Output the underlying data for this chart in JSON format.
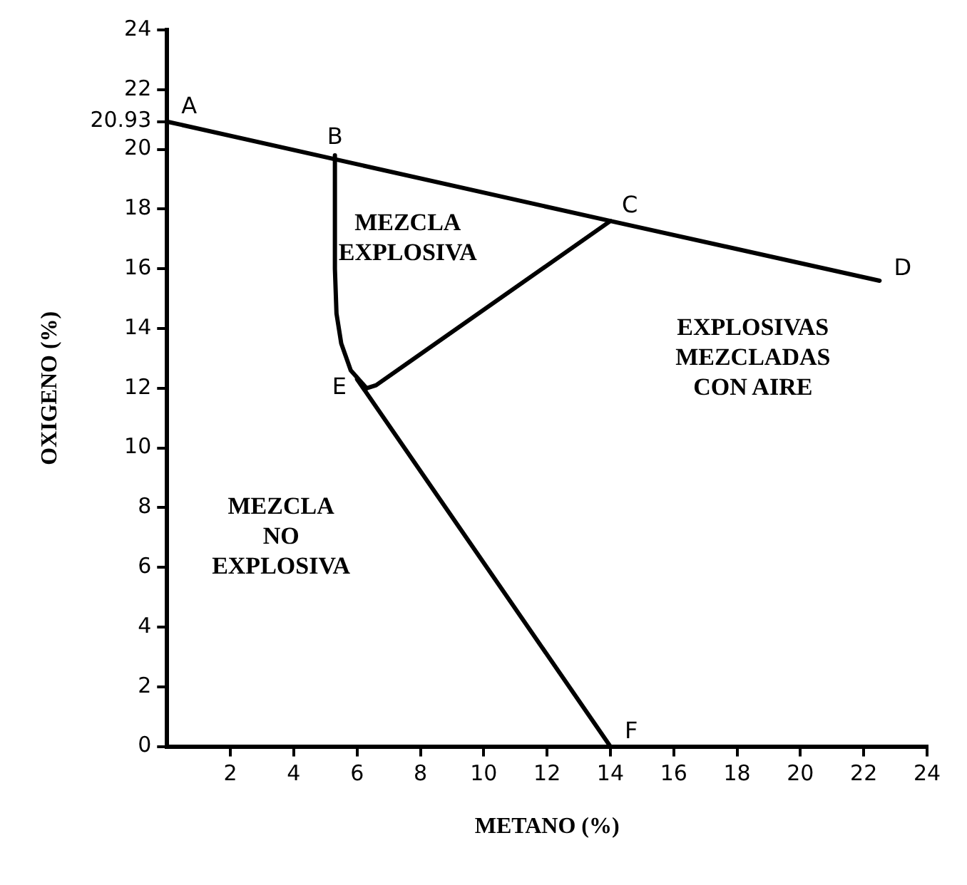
{
  "chart_data": {
    "type": "line",
    "xlabel": "METANO (%)",
    "ylabel": "OXIGENO (%)",
    "xlim": [
      0,
      24
    ],
    "xticks": [
      2,
      4,
      6,
      8,
      10,
      12,
      14,
      16,
      18,
      20,
      22,
      24
    ],
    "ylim": [
      0,
      24
    ],
    "yticks": [
      0,
      2,
      4,
      6,
      8,
      10,
      12,
      14,
      16,
      18,
      20,
      {
        "value": 20.93,
        "label": "20.93"
      },
      22,
      24
    ],
    "grid": false,
    "legend": false,
    "marker": "none",
    "line_style": "solid",
    "series": [
      {
        "color": "#000000",
        "x": [
          0,
          14,
          22.5
        ],
        "values": [
          20.93,
          17.6,
          15.6
        ]
      },
      {
        "color": "#000000",
        "x": [
          5.3,
          5.3,
          5.35,
          5.5,
          5.8,
          6.3
        ],
        "values": [
          19.8,
          16,
          14.5,
          13.5,
          12.6,
          12
        ]
      },
      {
        "color": "#000000",
        "x": [
          6.3,
          6.6,
          14
        ],
        "values": [
          12,
          12.1,
          17.6
        ]
      },
      {
        "color": "#000000",
        "x": [
          6.0,
          14
        ],
        "values": [
          12.3,
          0
        ]
      }
    ],
    "annotations": [
      {
        "text": "A",
        "x": 0,
        "y": 20.93
      },
      {
        "text": "B",
        "x": 5.3,
        "y": 19.8
      },
      {
        "text": "C",
        "x": 14,
        "y": 17.6
      },
      {
        "text": "D",
        "x": 22.5,
        "y": 15.6
      },
      {
        "text": "E",
        "x": 6.3,
        "y": 12
      },
      {
        "text": "F",
        "x": 14,
        "y": 0
      },
      "MEZCLA\nEXPLOSIVA",
      "EXPLOSIVAS\nMEZCLADAS\nCON AIRE",
      "MEZCLA\nNO\nEXPLOSIVA"
    ]
  }
}
